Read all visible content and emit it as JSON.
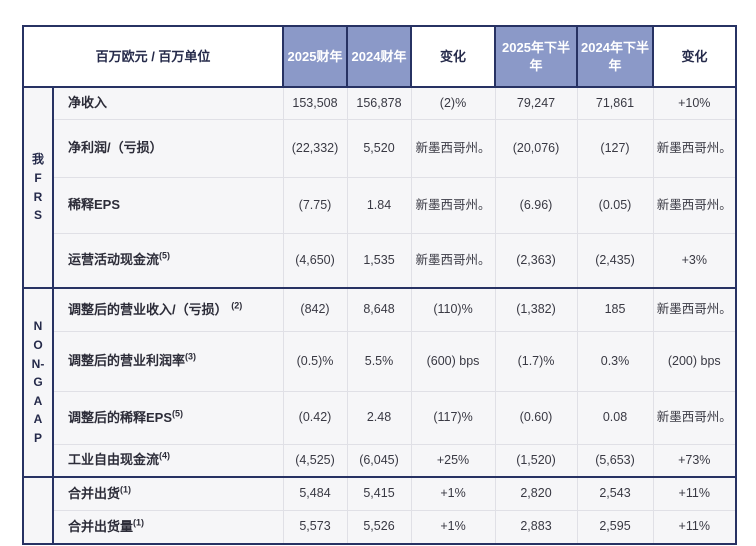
{
  "colors": {
    "header_blue": "#8b99c8",
    "border_navy": "#273263",
    "body_bg": "#f6f6f8",
    "header_text": "#252a4a",
    "value_text": "#393943"
  },
  "chart_data": {
    "type": "table",
    "unit_header": "百万欧元 / 百万单位",
    "columns": [
      "2025财年",
      "2024财年",
      "变化",
      "2025年下半年",
      "2024年下半年",
      "变化"
    ],
    "sections": [
      {
        "group_label": "我FRS",
        "rows": [
          {
            "label": "净收入",
            "sup": "",
            "values": [
              "153,508",
              "156,878",
              "(2)%",
              "79,247",
              "71,861",
              "+10%"
            ]
          },
          {
            "label": "净利润/（亏损）",
            "sup": "",
            "values": [
              "(22,332)",
              "5,520",
              "新墨西哥州。",
              "(20,076)",
              "(127)",
              "新墨西哥州。"
            ]
          },
          {
            "label": "稀释EPS",
            "sup": "",
            "values": [
              "(7.75)",
              "1.84",
              "新墨西哥州。",
              "(6.96)",
              "(0.05)",
              "新墨西哥州。"
            ]
          },
          {
            "label": "运营活动现金流",
            "sup": "(5)",
            "values": [
              "(4,650)",
              "1,535",
              "新墨西哥州。",
              "(2,363)",
              "(2,435)",
              "+3%"
            ]
          }
        ]
      },
      {
        "group_label": "NON-GAAP",
        "rows": [
          {
            "label": "调整后的营业收入/（亏损）",
            "sup": "(2)",
            "values": [
              "(842)",
              "8,648",
              "(110)%",
              "(1,382)",
              "185",
              "新墨西哥州。"
            ]
          },
          {
            "label": "调整后的营业利润率",
            "sup": "(3)",
            "values": [
              "(0.5)%",
              "5.5%",
              "(600) bps",
              "(1.7)%",
              "0.3%",
              "(200) bps"
            ]
          },
          {
            "label": "调整后的稀释EPS",
            "sup": "(5)",
            "values": [
              "(0.42)",
              "2.48",
              "(117)%",
              "(0.60)",
              "0.08",
              "新墨西哥州。"
            ]
          },
          {
            "label": "工业自由现金流",
            "sup": "(4)",
            "values": [
              "(4,525)",
              "(6,045)",
              "+25%",
              "(1,520)",
              "(5,653)",
              "+73%"
            ]
          }
        ]
      },
      {
        "group_label": "",
        "rows": [
          {
            "label": "合并出货",
            "sup": "(1)",
            "values": [
              "5,484",
              "5,415",
              "+1%",
              "2,820",
              "2,543",
              "+11%"
            ]
          },
          {
            "label": "合并出货量",
            "sup": "(1)",
            "values": [
              "5,573",
              "5,526",
              "+1%",
              "2,883",
              "2,595",
              "+11%"
            ]
          }
        ]
      }
    ]
  }
}
